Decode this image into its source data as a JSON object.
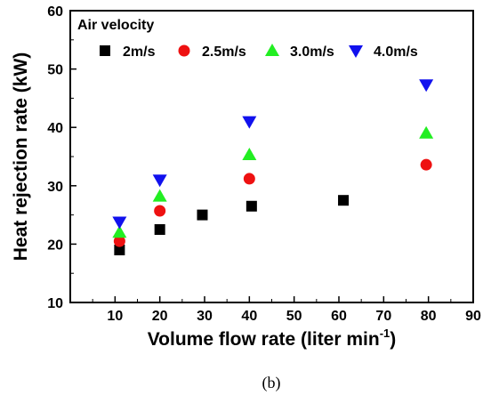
{
  "chart_data": {
    "type": "scatter",
    "xlabel": "Volume flow rate (liter min",
    "xlabel_sup": "-1",
    "xlabel_close": ")",
    "ylabel": "Heat rejection rate (kW)",
    "xlim": [
      0,
      90
    ],
    "ylim": [
      10,
      60
    ],
    "xticks": [
      10,
      20,
      30,
      40,
      50,
      60,
      70,
      80,
      90
    ],
    "yticks": [
      10,
      20,
      30,
      40,
      50,
      60
    ],
    "legend_title": "Air velocity",
    "legend_placement": "top",
    "caption": "(b)",
    "series": [
      {
        "name": "2m/s",
        "marker": "square",
        "color": "#000000",
        "points": [
          [
            11,
            19.0
          ],
          [
            20,
            22.5
          ],
          [
            29.5,
            25.0
          ],
          [
            40.5,
            26.5
          ],
          [
            61,
            27.5
          ]
        ]
      },
      {
        "name": "2.5m/s",
        "marker": "circle",
        "color": "#ee1111",
        "points": [
          [
            11,
            20.5
          ],
          [
            20,
            25.7
          ],
          [
            40,
            31.2
          ],
          [
            79.5,
            33.6
          ]
        ]
      },
      {
        "name": "3.0m/s",
        "marker": "triangle-up",
        "color": "#22ee22",
        "points": [
          [
            11,
            22.0
          ],
          [
            20,
            28.2
          ],
          [
            40,
            35.3
          ],
          [
            79.5,
            39.0
          ]
        ]
      },
      {
        "name": "4.0m/s",
        "marker": "triangle-down",
        "color": "#1111ee",
        "points": [
          [
            11,
            23.8
          ],
          [
            20,
            31.0
          ],
          [
            40,
            41.0
          ],
          [
            79.5,
            47.3
          ]
        ]
      }
    ]
  }
}
